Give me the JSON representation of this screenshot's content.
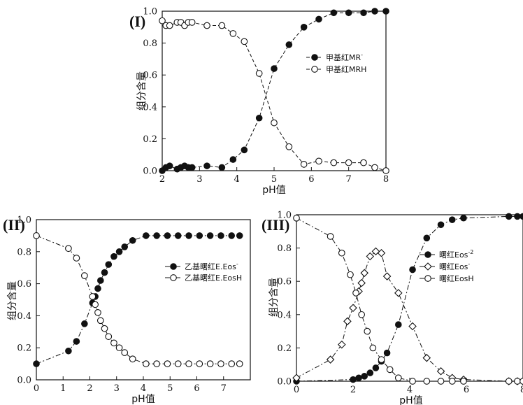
{
  "chart_data": [
    {
      "panel_label": "(I)",
      "type": "scatter",
      "xlabel": "pH值",
      "ylabel": "组分含量",
      "xlim": [
        2,
        8
      ],
      "ylim": [
        0,
        1.0
      ],
      "xticks": [
        "2",
        "3",
        "4",
        "5",
        "6",
        "7",
        "8"
      ],
      "yticks": [
        "0.0",
        "0.2",
        "0.4",
        "0.6",
        "0.8",
        "1.0"
      ],
      "legend_position": "right-middle",
      "series": [
        {
          "name": "甲基红MR",
          "superscript": "-",
          "marker": "filled-circle",
          "line": "dashed",
          "x": [
            2.0,
            2.1,
            2.2,
            2.4,
            2.5,
            2.6,
            2.7,
            2.8,
            3.2,
            3.6,
            3.9,
            4.2,
            4.6,
            5.0,
            5.4,
            5.8,
            6.2,
            6.6,
            7.0,
            7.4,
            7.7,
            8.0
          ],
          "y": [
            0.0,
            0.02,
            0.03,
            0.01,
            0.02,
            0.03,
            0.02,
            0.02,
            0.03,
            0.02,
            0.07,
            0.13,
            0.33,
            0.64,
            0.79,
            0.9,
            0.95,
            0.99,
            0.99,
            0.99,
            1.0,
            1.0
          ]
        },
        {
          "name": "甲基红MRH",
          "superscript": "",
          "marker": "open-circle",
          "line": "dashed",
          "x": [
            2.0,
            2.1,
            2.2,
            2.4,
            2.5,
            2.6,
            2.7,
            2.8,
            3.2,
            3.6,
            3.9,
            4.2,
            4.6,
            5.0,
            5.4,
            5.8,
            6.2,
            6.6,
            7.0,
            7.4,
            7.7,
            8.0
          ],
          "y": [
            0.94,
            0.91,
            0.91,
            0.93,
            0.93,
            0.91,
            0.93,
            0.93,
            0.91,
            0.91,
            0.86,
            0.81,
            0.61,
            0.3,
            0.15,
            0.04,
            0.06,
            0.05,
            0.05,
            0.05,
            0.02,
            0.0
          ]
        }
      ]
    },
    {
      "panel_label": "(II)",
      "type": "scatter",
      "xlabel": "pH值",
      "ylabel": "组分含量",
      "xlim": [
        0,
        8
      ],
      "ylim": [
        0,
        1.0
      ],
      "xticks": [
        "0",
        "1",
        "2",
        "3",
        "4",
        "5",
        "6",
        "7"
      ],
      "yticks": [
        "0.0",
        "0.2",
        "0.4",
        "0.6",
        "0.8",
        "1.0"
      ],
      "legend_position": "right-middle",
      "series": [
        {
          "name": "乙基曙红E.Eos",
          "superscript": "-",
          "marker": "filled-circle",
          "line": "dash-dot",
          "x": [
            0.0,
            1.2,
            1.5,
            1.8,
            2.1,
            2.2,
            2.3,
            2.4,
            2.55,
            2.7,
            2.9,
            3.1,
            3.3,
            3.6,
            4.1,
            4.5,
            4.9,
            5.3,
            5.7,
            6.1,
            6.5,
            6.9,
            7.3,
            7.6
          ],
          "y": [
            0.1,
            0.18,
            0.24,
            0.35,
            0.48,
            0.52,
            0.57,
            0.62,
            0.67,
            0.72,
            0.77,
            0.8,
            0.83,
            0.87,
            0.9,
            0.9,
            0.9,
            0.9,
            0.9,
            0.9,
            0.9,
            0.9,
            0.9,
            0.9
          ]
        },
        {
          "name": "乙基曙红E.EosH",
          "superscript": "",
          "marker": "open-circle",
          "line": "dash-dot",
          "x": [
            0.0,
            1.2,
            1.5,
            1.8,
            2.1,
            2.2,
            2.3,
            2.4,
            2.55,
            2.7,
            2.9,
            3.1,
            3.3,
            3.6,
            4.1,
            4.5,
            4.9,
            5.3,
            5.7,
            6.1,
            6.5,
            6.9,
            7.3,
            7.6
          ],
          "y": [
            0.9,
            0.82,
            0.76,
            0.65,
            0.52,
            0.47,
            0.42,
            0.37,
            0.32,
            0.27,
            0.23,
            0.2,
            0.17,
            0.13,
            0.1,
            0.1,
            0.1,
            0.1,
            0.1,
            0.1,
            0.1,
            0.1,
            0.1,
            0.1
          ]
        }
      ]
    },
    {
      "panel_label": "(III)",
      "type": "scatter",
      "xlabel": "pH值",
      "ylabel": "组分含量",
      "xlim": [
        0,
        8
      ],
      "ylim": [
        0,
        1.0
      ],
      "xticks": [
        "0",
        "2",
        "4",
        "6",
        "8"
      ],
      "yticks": [
        "0.0",
        "0.2",
        "0.4",
        "0.6",
        "0.8",
        "1.0"
      ],
      "legend_position": "right-middle",
      "series": [
        {
          "name": "曙红Eos",
          "superscript": "-2",
          "marker": "filled-circle",
          "line": "dash-dot",
          "x": [
            0.0,
            2.0,
            2.2,
            2.4,
            2.6,
            2.8,
            3.0,
            3.2,
            3.6,
            4.1,
            4.6,
            5.1,
            5.5,
            5.9,
            7.5,
            7.8,
            8.0
          ],
          "y": [
            0.0,
            0.01,
            0.02,
            0.03,
            0.05,
            0.08,
            0.12,
            0.17,
            0.34,
            0.67,
            0.86,
            0.94,
            0.97,
            0.98,
            0.99,
            0.99,
            0.99
          ]
        },
        {
          "name": "曙红Eos",
          "superscript": "-",
          "marker": "open-diamond",
          "line": "dash-dot",
          "x": [
            0.0,
            1.2,
            1.6,
            1.8,
            2.0,
            2.2,
            2.3,
            2.4,
            2.6,
            2.8,
            3.0,
            3.2,
            3.6,
            4.1,
            4.6,
            5.1,
            5.5,
            5.9,
            7.5,
            7.8,
            8.0
          ],
          "y": [
            0.02,
            0.13,
            0.22,
            0.36,
            0.44,
            0.54,
            0.59,
            0.65,
            0.75,
            0.78,
            0.77,
            0.63,
            0.53,
            0.33,
            0.14,
            0.06,
            0.02,
            0.01,
            0.0,
            0.0,
            0.0
          ]
        },
        {
          "name": "曙红EosH",
          "superscript": "",
          "marker": "open-circle",
          "line": "dash-dot",
          "x": [
            0.0,
            1.2,
            1.6,
            1.9,
            2.1,
            2.3,
            2.5,
            2.7,
            3.0,
            3.3,
            3.6,
            4.1,
            4.6,
            5.1,
            5.5,
            5.9,
            7.5,
            7.8,
            8.0
          ],
          "y": [
            0.98,
            0.87,
            0.77,
            0.64,
            0.53,
            0.4,
            0.3,
            0.2,
            0.13,
            0.07,
            0.02,
            0.0,
            0.0,
            0.0,
            0.0,
            0.0,
            0.0,
            0.0,
            0.0
          ]
        }
      ]
    }
  ]
}
